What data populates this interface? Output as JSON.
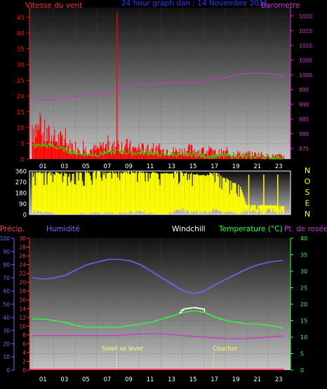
{
  "header": {
    "wind_label": "Vitesse du vent",
    "graph_title": "24 hour graph dan : 14 Novembre 2011",
    "baro_label": "Barometre"
  },
  "hours": [
    "01",
    "03",
    "05",
    "07",
    "09",
    "11",
    "13",
    "15",
    "17",
    "19",
    "21",
    "23"
  ],
  "compass": [
    "N",
    "O",
    "S",
    "E",
    "N"
  ],
  "bottom_labels": {
    "precip": "Précip.",
    "humidity": "Humidité",
    "windchill": "Windchill",
    "temperature": "Temperature (°C)",
    "dewpoint": "Pt. de rosée",
    "sunrise": "Soleil se lever",
    "sunset": "Coucher"
  },
  "colors": {
    "wind": "#ff0000",
    "gust": "#ff0000",
    "avg_wind": "#00ff00",
    "pressure": "#cc33cc",
    "direction": "#ffff00",
    "humidity": "#6b6bff",
    "temperature": "#33ff33",
    "windchill": "#ffffff",
    "dewpoint": "#cc33cc",
    "precip": "#ff3355",
    "sun_marker": "#ffff66"
  },
  "chart_data": [
    {
      "type": "area",
      "x_label_ticks": [
        "01",
        "03",
        "05",
        "07",
        "09",
        "11",
        "13",
        "15",
        "17",
        "19",
        "21",
        "23"
      ],
      "y_left": {
        "ticks": [
          0,
          5,
          10,
          15,
          20,
          25,
          30,
          35,
          40,
          45
        ],
        "range": [
          0,
          48
        ]
      },
      "y_right": {
        "ticks": [
          975,
          980,
          985,
          990,
          995,
          1000,
          1005,
          1010,
          1015,
          1020
        ],
        "range": [
          971.4,
          1022.8
        ]
      },
      "series": [
        {
          "kind": "wind",
          "x": [
            0,
            0.5,
            1,
            1.5,
            2,
            2.5,
            3,
            3.5,
            4,
            4.5,
            5,
            5.5,
            6,
            6.5,
            7,
            7.5,
            8,
            8.5,
            9,
            9.5,
            10,
            10.5,
            11,
            11.5,
            12,
            12.5,
            13,
            13.5,
            14,
            14.5,
            15,
            15.5,
            16,
            16.5,
            17,
            17.5,
            18,
            18.5,
            19,
            19.5,
            20,
            20.5,
            21,
            21.5,
            22,
            22.5,
            23,
            23.5
          ],
          "values": [
            11,
            9,
            8,
            7,
            6,
            6,
            5,
            4,
            4,
            3.5,
            3,
            3,
            3,
            3.5,
            4,
            3.5,
            4.5,
            4,
            4,
            3,
            3.5,
            3,
            3,
            3,
            2.5,
            3,
            2.5,
            2.5,
            2.5,
            3,
            3,
            2.5,
            2.5,
            2.5,
            2,
            2,
            2,
            1.5,
            2,
            1.5,
            1.5,
            1.5,
            1.5,
            1.5,
            1,
            1,
            1,
            1
          ]
        },
        {
          "kind": "avg_wind",
          "x": [
            0,
            1,
            2,
            3,
            4,
            5,
            6,
            7,
            8,
            9,
            10,
            11,
            12,
            13,
            14,
            15,
            16,
            17,
            18,
            19,
            20,
            21,
            22,
            23,
            23.5
          ],
          "values": [
            4,
            4.5,
            4,
            3,
            2,
            1.5,
            1.5,
            2,
            2.5,
            2,
            2,
            2,
            1.5,
            1.5,
            1.5,
            1.5,
            1,
            1,
            1,
            1,
            0.5,
            1,
            0.5,
            0.5,
            0.5
          ]
        },
        {
          "kind": "gust_spike",
          "x": 7.9,
          "values": [
            46.5
          ]
        },
        {
          "kind": "pressure",
          "x": [
            0,
            1,
            2,
            3,
            4,
            5,
            6,
            7,
            7.5,
            8,
            9,
            10,
            11,
            12,
            13,
            14,
            15,
            16,
            17,
            18,
            19,
            20,
            21,
            22,
            23,
            23.5
          ],
          "values": [
            992,
            991.5,
            991.5,
            992,
            992.5,
            993,
            993.5,
            994,
            994,
            995,
            996.5,
            997,
            997,
            997,
            997.5,
            997.5,
            997.5,
            998,
            998.5,
            999,
            1000,
            1000.5,
            1000.5,
            1000.5,
            1000,
            999.5
          ]
        }
      ]
    },
    {
      "type": "area",
      "x_label_ticks": [],
      "y_left": {
        "ticks": [
          0,
          90,
          180,
          270,
          360
        ],
        "range": [
          0,
          360
        ]
      },
      "y_right": {
        "ticks": [
          "N",
          "O",
          "S",
          "E",
          "N"
        ]
      },
      "series": [
        {
          "kind": "direction_band",
          "x": [
            0,
            3,
            6,
            8,
            10,
            12,
            14,
            16,
            17,
            19.4,
            20,
            22,
            23.5
          ],
          "upper": [
            360,
            350,
            360,
            355,
            360,
            350,
            360,
            330,
            360,
            240,
            80,
            80,
            70
          ],
          "lower": [
            30,
            0,
            20,
            10,
            30,
            0,
            40,
            20,
            40,
            10,
            40,
            40,
            30
          ]
        }
      ]
    },
    {
      "type": "line",
      "x_label_ticks": [
        "01",
        "03",
        "05",
        "07",
        "09",
        "11",
        "13",
        "15",
        "17",
        "19",
        "21",
        "23"
      ],
      "y_left": {
        "ticks": [
          0,
          10,
          20,
          30,
          40,
          50,
          60,
          70,
          80,
          90,
          100
        ],
        "range": [
          0,
          100
        ]
      },
      "y_mid": {
        "ticks": [
          0,
          2,
          4,
          6,
          8,
          10,
          12,
          14,
          16,
          18,
          20,
          22,
          24,
          26,
          28,
          30
        ],
        "range": [
          0,
          30
        ]
      },
      "y_right": {
        "ticks": [
          0,
          5,
          10,
          15,
          20,
          25,
          30,
          35,
          40
        ],
        "range": [
          0,
          40
        ]
      },
      "series": [
        {
          "kind": "humidity",
          "x": [
            0,
            1,
            2,
            3,
            4,
            5,
            6,
            7,
            8,
            9,
            10,
            11,
            12,
            13,
            14,
            15,
            16,
            17,
            18,
            19,
            20,
            21,
            22,
            23,
            23.5
          ],
          "values": [
            70,
            69,
            70,
            72,
            76,
            80,
            82,
            84,
            84,
            83,
            80,
            75,
            70,
            65,
            60,
            58,
            60,
            65,
            69,
            73,
            77,
            80,
            82,
            83,
            83
          ]
        },
        {
          "kind": "temperature",
          "x": [
            0,
            1,
            2,
            3,
            4,
            5,
            6,
            7,
            8,
            9,
            10,
            11,
            12,
            13,
            14,
            15,
            16,
            17,
            18,
            19,
            20,
            21,
            22,
            23,
            23.5
          ],
          "values": [
            15.5,
            15.5,
            15,
            14.5,
            13.5,
            13,
            13,
            13,
            13,
            13.5,
            14,
            14.5,
            15.5,
            16.5,
            17.5,
            18,
            17.5,
            16,
            15,
            14.5,
            14,
            14,
            13.5,
            13,
            12.5
          ]
        },
        {
          "kind": "windchill",
          "x": [
            13.7,
            14,
            15,
            15.9,
            16.1
          ],
          "values": [
            17.5,
            18.5,
            19,
            18.5,
            17.5
          ]
        },
        {
          "kind": "dewpoint",
          "x": [
            0,
            2,
            4,
            6,
            8,
            10,
            12,
            14,
            16,
            18,
            20,
            22,
            23.5
          ],
          "values": [
            10.5,
            10.5,
            10.5,
            10.5,
            10.5,
            11,
            11,
            10.5,
            10,
            9.5,
            9.5,
            10,
            10.5
          ]
        },
        {
          "kind": "precip",
          "x": [
            0,
            23.5
          ],
          "values": [
            0,
            0
          ]
        }
      ],
      "sunrise_hour": 7.9,
      "sunset_hour": 16.9
    }
  ]
}
